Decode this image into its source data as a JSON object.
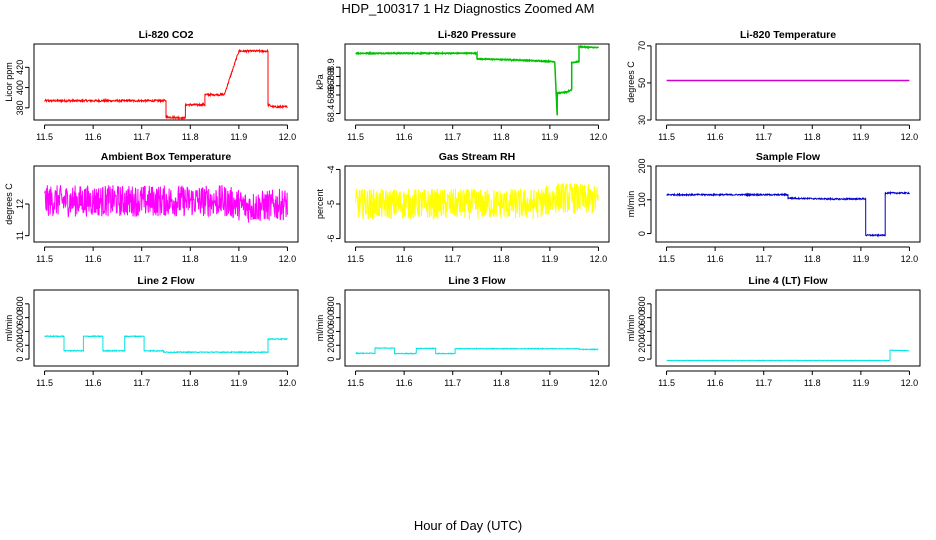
{
  "figure": {
    "title": "HDP_100317  1 Hz Diagnostics Zoomed AM",
    "xlabel": "Hour of Day (UTC)"
  },
  "chart_data": [
    {
      "type": "line",
      "title": "Li-820 CO2",
      "ylabel": "Licor ppm",
      "color": "#ff0000",
      "xlim": [
        11.5,
        12.0
      ],
      "ylim": [
        368,
        443
      ],
      "yticks": [
        380,
        400,
        420
      ],
      "noise": 1,
      "x": [
        11.5,
        11.75,
        11.75,
        11.79,
        11.79,
        11.83,
        11.83,
        11.87,
        11.9,
        11.96,
        11.96,
        11.97,
        12.0
      ],
      "y": [
        387,
        387,
        371,
        370,
        383,
        383,
        393,
        393,
        436,
        436,
        383,
        381,
        381
      ]
    },
    {
      "type": "line",
      "title": "Li-820 Pressure",
      "ylabel": "kPa",
      "color": "#00c000",
      "xlim": [
        11.5,
        12.0
      ],
      "ylim": [
        68.33,
        69.15
      ],
      "yticks": [
        68.4,
        68.6,
        68.7,
        68.8,
        68.9
      ],
      "noise": 0.005,
      "x": [
        11.5,
        11.75,
        11.75,
        11.82,
        11.91,
        11.915,
        11.915,
        11.935,
        11.945,
        11.945,
        11.96,
        11.96,
        12.0
      ],
      "y": [
        69.05,
        69.05,
        68.99,
        68.98,
        68.96,
        68.38,
        68.62,
        68.63,
        68.66,
        68.95,
        68.96,
        69.12,
        69.11
      ]
    },
    {
      "type": "line",
      "title": "Li-820 Temperature",
      "ylabel": "degrees C",
      "color": "#d000d0",
      "xlim": [
        11.5,
        12.0
      ],
      "ylim": [
        30,
        71
      ],
      "yticks": [
        30,
        50,
        70
      ],
      "noise": 0,
      "x": [
        11.5,
        12.0
      ],
      "y": [
        51.3,
        51.3
      ]
    },
    {
      "type": "line",
      "title": "Ambient Box Temperature",
      "ylabel": "degrees C",
      "color": "#ff00ff",
      "xlim": [
        11.5,
        12.0
      ],
      "ylim": [
        10.8,
        13.2
      ],
      "yticks": [
        11.0,
        12.0
      ],
      "noise": 0.5,
      "x": [
        11.5,
        11.87,
        11.92,
        12.0
      ],
      "y": [
        12.1,
        12.1,
        11.9,
        12.0
      ]
    },
    {
      "type": "line",
      "title": "Gas Stream RH",
      "ylabel": "percent",
      "color": "#ffff00",
      "xlim": [
        11.5,
        12.0
      ],
      "ylim": [
        -6.1,
        -3.9
      ],
      "yticks": [
        -6.0,
        -5.0,
        -4.0
      ],
      "noise": 0.45,
      "x": [
        11.5,
        11.87,
        11.92,
        12.0
      ],
      "y": [
        -5.0,
        -5.0,
        -4.8,
        -4.9
      ]
    },
    {
      "type": "line",
      "title": "Sample Flow",
      "ylabel": "ml/min",
      "color": "#0000cc",
      "xlim": [
        11.5,
        12.0
      ],
      "ylim": [
        -25,
        200
      ],
      "yticks": [
        0,
        100,
        200
      ],
      "noise": 2,
      "x": [
        11.5,
        11.75,
        11.75,
        11.85,
        11.91,
        11.91,
        11.95,
        11.95,
        12.0
      ],
      "y": [
        115,
        115,
        105,
        102,
        103,
        -5,
        -5,
        120,
        120
      ]
    },
    {
      "type": "line",
      "title": "Line 2 Flow",
      "ylabel": "ml/min",
      "color": "#00e5e5",
      "xlim": [
        11.5,
        12.0
      ],
      "ylim": [
        -100,
        1000
      ],
      "yticks": [
        0,
        200,
        400,
        600,
        800
      ],
      "noise": 6,
      "x": [
        11.5,
        11.54,
        11.54,
        11.58,
        11.58,
        11.62,
        11.62,
        11.665,
        11.665,
        11.705,
        11.705,
        11.745,
        11.745,
        11.96,
        11.96,
        12.0
      ],
      "y": [
        330,
        330,
        120,
        120,
        330,
        330,
        120,
        120,
        330,
        330,
        120,
        120,
        100,
        100,
        290,
        290
      ]
    },
    {
      "type": "line",
      "title": "Line 3 Flow",
      "ylabel": "ml/min",
      "color": "#00e5e5",
      "xlim": [
        11.5,
        12.0
      ],
      "ylim": [
        -100,
        1000
      ],
      "yticks": [
        0,
        200,
        400,
        600,
        800
      ],
      "noise": 5,
      "x": [
        11.5,
        11.54,
        11.54,
        11.58,
        11.58,
        11.625,
        11.625,
        11.665,
        11.665,
        11.705,
        11.705,
        11.96,
        11.96,
        12.0
      ],
      "y": [
        85,
        85,
        160,
        160,
        80,
        80,
        155,
        155,
        80,
        80,
        150,
        150,
        140,
        140
      ]
    },
    {
      "type": "line",
      "title": "Line 4 (LT) Flow",
      "ylabel": "ml/min",
      "color": "#00e5e5",
      "xlim": [
        11.5,
        12.0
      ],
      "ylim": [
        -100,
        1000
      ],
      "yticks": [
        0,
        200,
        400,
        600,
        800
      ],
      "noise": 3,
      "x": [
        11.5,
        11.96,
        11.96,
        12.0
      ],
      "y": [
        -20,
        -20,
        130,
        120
      ]
    }
  ]
}
